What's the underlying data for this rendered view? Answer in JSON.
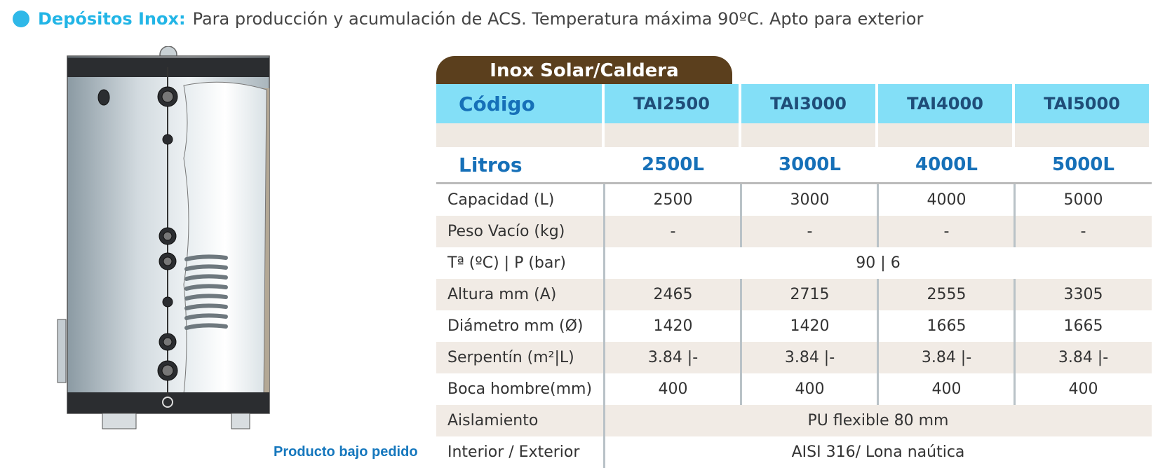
{
  "header": {
    "title": "Depósitos Inox:",
    "description": "Para producción y acumulación de ACS. Temperatura máxima 90ºC. Apto para exterior"
  },
  "caption": "Producto bajo pedido",
  "table": {
    "title": "Inox Solar/Caldera",
    "code_label": "Código",
    "codes": [
      "TAI2500",
      "TAI3000",
      "TAI4000",
      "TAI5000"
    ],
    "liters_label": "Litros",
    "liters": [
      "2500L",
      "3000L",
      "4000L",
      "5000L"
    ],
    "rows": {
      "capacidad": {
        "label": "Capacidad (L)",
        "values": [
          "2500",
          "3000",
          "4000",
          "5000"
        ]
      },
      "peso": {
        "label": "Peso Vacío (kg)",
        "values": [
          "-",
          "-",
          "-",
          "-"
        ]
      },
      "temp": {
        "label": "Tª  (ºC) | P (bar)",
        "value": "90 | 6"
      },
      "altura": {
        "label": "Altura mm (A)",
        "values": [
          "2465",
          "2715",
          "2555",
          "3305"
        ]
      },
      "diametro": {
        "label": "Diámetro mm (Ø)",
        "values": [
          "1420",
          "1420",
          "1665",
          "1665"
        ]
      },
      "serpentin": {
        "label": "Serpentín (m²|L)",
        "values": [
          "3.84 |-",
          "3.84 |-",
          "3.84 |-",
          "3.84 |-"
        ]
      },
      "boca": {
        "label": "Boca hombre(mm)",
        "values": [
          "400",
          "400",
          "400",
          "400"
        ]
      },
      "aislamiento": {
        "label": "Aislamiento",
        "value": "PU flexible 80 mm"
      },
      "interior": {
        "label": "Interior / Exterior",
        "value": "AISI 316/ Lona naútica"
      }
    }
  },
  "colors": {
    "accent": "#22b5e6",
    "tab_brown": "#5b3f1d",
    "header_cyan": "#83dff7",
    "blue_text": "#1670b8"
  },
  "icons": {
    "bullet": "circle-bullet-icon",
    "tank": "water-tank-illustration"
  }
}
